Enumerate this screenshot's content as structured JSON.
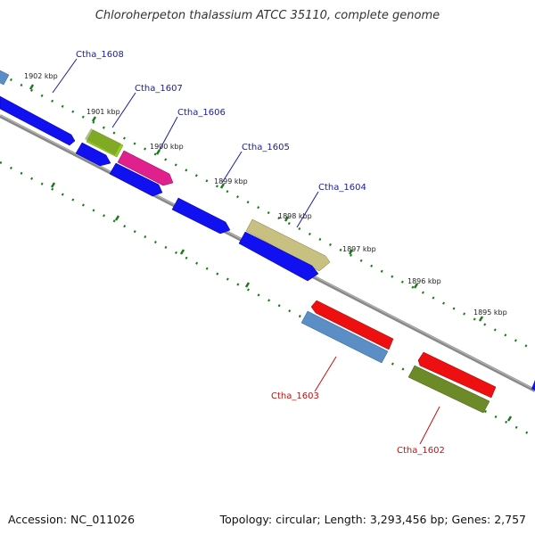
{
  "title": "Chloroherpeton thalassium ATCC 35110, complete genome",
  "footer": {
    "accession": "Accession: NC_011026",
    "stats": "Topology: circular; Length: 3,293,456 bp; Genes: 2,757"
  },
  "colors": {
    "blue": "#1010f0",
    "olive": "#6d8a28",
    "lime": "#9ad021",
    "magenta": "#e0208c",
    "khaki": "#c8c080",
    "steel": "#5a8ec4",
    "red": "#ee1010",
    "backbone": "#888888",
    "ticks": "#1a7a1a",
    "label_forward": "#1a1aa0",
    "label_reverse": "#c01010"
  },
  "ticks": {
    "labels": [
      "1902 kbp",
      "1901 kbp",
      "1900 kbp",
      "1899 kbp",
      "1898 kbp",
      "1897 kbp",
      "1896 kbp",
      "1895 kbp"
    ]
  },
  "genes": {
    "labels_forward": [
      "Ctha_1608",
      "Ctha_1607",
      "Ctha_1606",
      "Ctha_1605",
      "Ctha_1604"
    ],
    "labels_reverse": [
      "Ctha_1603",
      "Ctha_1602"
    ]
  }
}
